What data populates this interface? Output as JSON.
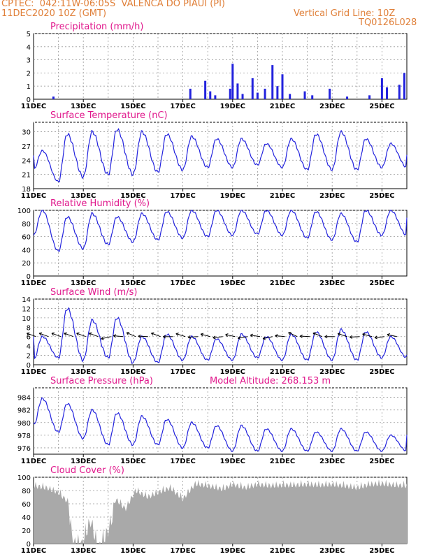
{
  "header": {
    "line1": "CPTEC:  042:11W-06:05S  VALENCA DO PIAUI (PI)",
    "date": "11DEC2020 10Z (GMT)",
    "grid_note": "Vertical Grid Line: 10Z",
    "code": "TQ0126L028"
  },
  "colors": {
    "accent_title": "#e0188c",
    "header": "#e0803a",
    "series": "#2222dd",
    "cloud": "#a9a9a9"
  },
  "x_axis": {
    "range_days": [
      11,
      26
    ],
    "tick_labels": [
      "11DEC",
      "13DEC",
      "15DEC",
      "17DEC",
      "19DEC",
      "21DEC",
      "23DEC",
      "25DEC"
    ],
    "tick_days": [
      11,
      13,
      15,
      17,
      19,
      21,
      23,
      25
    ]
  },
  "chart_data": [
    {
      "id": "precip",
      "type": "bar",
      "title": "Precipitation (mm/h)",
      "ylim": [
        0,
        5
      ],
      "yticks": [
        0,
        1,
        2,
        3,
        4,
        5
      ],
      "bars": [
        [
          11.8,
          0.2
        ],
        [
          17.3,
          0.8
        ],
        [
          17.9,
          1.4
        ],
        [
          18.1,
          0.6
        ],
        [
          18.3,
          0.3
        ],
        [
          18.9,
          0.8
        ],
        [
          19.0,
          2.7
        ],
        [
          19.2,
          1.2
        ],
        [
          19.4,
          0.4
        ],
        [
          19.8,
          1.6
        ],
        [
          20.0,
          0.5
        ],
        [
          20.3,
          0.8
        ],
        [
          20.6,
          2.6
        ],
        [
          20.8,
          1.0
        ],
        [
          21.0,
          1.9
        ],
        [
          21.3,
          0.4
        ],
        [
          21.9,
          0.6
        ],
        [
          22.2,
          0.3
        ],
        [
          22.9,
          0.8
        ],
        [
          23.6,
          0.2
        ],
        [
          24.5,
          0.3
        ],
        [
          25.0,
          1.6
        ],
        [
          25.2,
          0.9
        ],
        [
          25.7,
          1.1
        ],
        [
          25.9,
          2.0
        ]
      ]
    },
    {
      "id": "temp",
      "type": "line",
      "title": "Surface Temperature (nC)",
      "ylim": [
        18,
        32
      ],
      "yticks": [
        18,
        21,
        24,
        27,
        30
      ],
      "min": [
        22,
        19.5,
        20.5,
        21,
        21,
        21.5,
        22,
        22.5,
        22.5,
        23,
        22.5,
        22,
        22,
        22,
        22.5
      ],
      "max": [
        26,
        29.5,
        30,
        30.5,
        30,
        29.5,
        29,
        28.5,
        28.5,
        27.5,
        28.5,
        29.5,
        30,
        28.5,
        27.5
      ],
      "start": 25,
      "end": 25
    },
    {
      "id": "rh",
      "type": "line",
      "title": "Relative Humidity (%)",
      "ylim": [
        0,
        100
      ],
      "yticks": [
        0,
        20,
        40,
        60,
        80,
        100
      ],
      "min": [
        62,
        38,
        42,
        48,
        52,
        55,
        58,
        60,
        62,
        64,
        62,
        58,
        55,
        52,
        62
      ],
      "max": [
        100,
        90,
        95,
        90,
        95,
        98,
        100,
        100,
        100,
        100,
        100,
        98,
        95,
        100,
        100
      ],
      "start": 62,
      "end": 88
    },
    {
      "id": "wind",
      "type": "line",
      "title": "Surface Wind (m/s)",
      "ylim": [
        0,
        14
      ],
      "yticks": [
        0,
        2,
        4,
        6,
        8,
        10,
        12,
        14
      ],
      "min": [
        1,
        1.5,
        1.0,
        1.5,
        0.5,
        0.5,
        1.0,
        1.0,
        1.0,
        1.5,
        1.0,
        1.0,
        1.0,
        1.0,
        1.5
      ],
      "max": [
        6,
        12,
        9.5,
        10,
        6,
        6.5,
        6,
        5.5,
        6.5,
        6,
        6.5,
        7,
        7.5,
        7,
        6
      ],
      "start": 6,
      "end": 2,
      "barbs_note": "wind direction arrows drawn along the series"
    },
    {
      "id": "press",
      "type": "line",
      "title": "Surface Pressure (hPa)",
      "extra_label": "Model Altitude: 268.153 m",
      "ylim": [
        975,
        985.5
      ],
      "yticks": [
        976,
        978,
        980,
        982,
        984
      ],
      "min": [
        979.5,
        978.5,
        977.5,
        976.5,
        976.5,
        976.5,
        976,
        976,
        975.5,
        975.5,
        975.5,
        975.5,
        975.5,
        975.5,
        975.5
      ],
      "max": [
        983.8,
        983,
        982,
        981.5,
        981,
        980.5,
        980,
        979.5,
        979.5,
        979,
        979,
        978.5,
        979,
        978.5,
        978
      ],
      "start": 980,
      "end": 978
    },
    {
      "id": "cloud",
      "type": "area",
      "title": "Cloud Cover (%)",
      "ylim": [
        0,
        100
      ],
      "yticks": [
        0,
        20,
        40,
        60,
        80,
        100
      ],
      "profile": [
        [
          11.0,
          95
        ],
        [
          11.5,
          92
        ],
        [
          12.0,
          85
        ],
        [
          12.4,
          70
        ],
        [
          12.6,
          20
        ],
        [
          12.9,
          15
        ],
        [
          13.3,
          55
        ],
        [
          13.6,
          10
        ],
        [
          14.0,
          40
        ],
        [
          14.3,
          75
        ],
        [
          14.7,
          60
        ],
        [
          15.1,
          88
        ],
        [
          15.6,
          78
        ],
        [
          16.0,
          85
        ],
        [
          16.5,
          92
        ],
        [
          17.0,
          75
        ],
        [
          17.5,
          98
        ],
        [
          18.0,
          95
        ],
        [
          18.6,
          90
        ],
        [
          19.0,
          97
        ],
        [
          19.5,
          92
        ],
        [
          20.0,
          97
        ],
        [
          20.5,
          95
        ],
        [
          21.0,
          96
        ],
        [
          21.5,
          96
        ],
        [
          22.0,
          97
        ],
        [
          22.5,
          96
        ],
        [
          23.0,
          97
        ],
        [
          23.5,
          95
        ],
        [
          24.0,
          92
        ],
        [
          24.5,
          97
        ],
        [
          25.0,
          98
        ],
        [
          25.5,
          96
        ],
        [
          26.0,
          95
        ]
      ]
    }
  ]
}
